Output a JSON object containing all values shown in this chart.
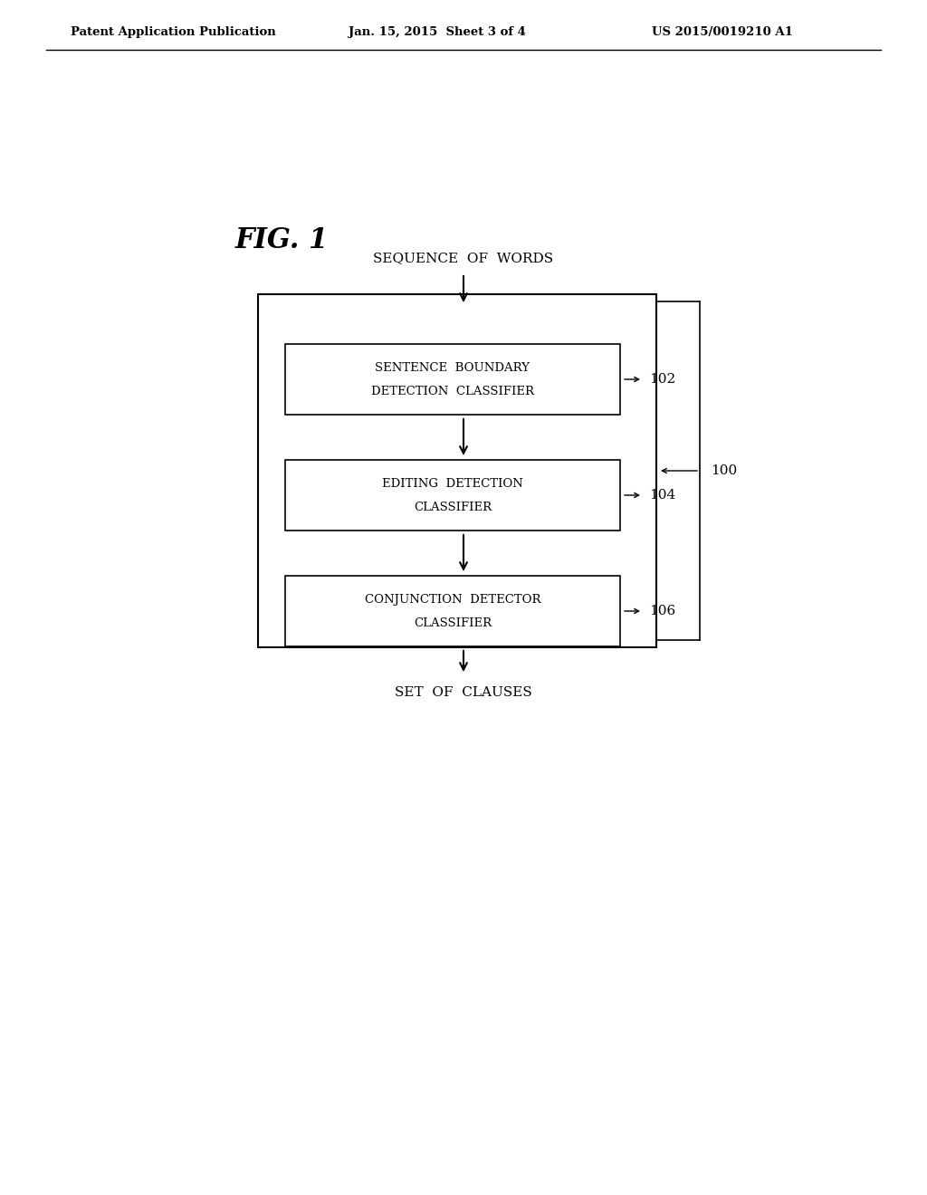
{
  "background_color": "#ffffff",
  "header_left": "Patent Application Publication",
  "header_center": "Jan. 15, 2015  Sheet 3 of 4",
  "header_right": "US 2015/0019210 A1",
  "fig_label": "FIG. 1",
  "top_label": "SEQUENCE  OF  WORDS",
  "bottom_label": "SET  OF  CLAUSES",
  "boxes": [
    {
      "line1": "SENTENCE  BOUNDARY",
      "line2": "DETECTION  CLASSIFIER",
      "tag": "102"
    },
    {
      "line1": "EDITING  DETECTION",
      "line2": "CLASSIFIER",
      "tag": "104"
    },
    {
      "line1": "CONJUNCTION  DETECTOR",
      "line2": "CLASSIFIER",
      "tag": "106"
    }
  ],
  "outer_box_tag": "100",
  "box_color": "#ffffff",
  "box_edge_color": "#000000",
  "text_color": "#000000",
  "arrow_color": "#000000"
}
